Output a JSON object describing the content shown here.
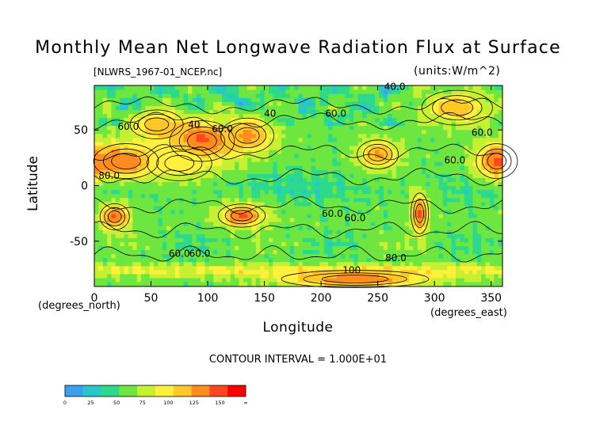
{
  "chart_data": {
    "type": "heatmap",
    "title": "Monthly Mean Net Longwave Radiation Flux at Surface",
    "subtitle_left": "[NLWRS_1967-01_NCEP.nc]",
    "subtitle_right": "(units:W/m^2)",
    "xlabel": "Longitude",
    "ylabel": "Latitude",
    "x_unit_note": "(degrees_east)",
    "y_unit_note": "(degrees_north)",
    "xlim": [
      0,
      360
    ],
    "ylim": [
      -90,
      90
    ],
    "xticks": [
      0,
      50,
      100,
      150,
      200,
      250,
      300,
      350
    ],
    "yticks": [
      -50,
      0,
      50
    ],
    "contour_interval_text": "CONTOUR INTERVAL = 1.000E+01",
    "contour_labels": [
      {
        "text": "40.0",
        "lon": 265,
        "lat": 86
      },
      {
        "text": "60.0",
        "lon": 213,
        "lat": 62
      },
      {
        "text": "60.0",
        "lon": 30,
        "lat": 50
      },
      {
        "text": "60.0",
        "lon": 113,
        "lat": 48
      },
      {
        "text": "40",
        "lon": 88,
        "lat": 52
      },
      {
        "text": "40",
        "lon": 155,
        "lat": 62
      },
      {
        "text": "60.0",
        "lon": 318,
        "lat": 20
      },
      {
        "text": "60.0",
        "lon": 342,
        "lat": 45
      },
      {
        "text": "80.0",
        "lon": 13,
        "lat": 6
      },
      {
        "text": "60.0",
        "lon": 210,
        "lat": -28
      },
      {
        "text": "60.0",
        "lon": 230,
        "lat": -32
      },
      {
        "text": "60.0",
        "lon": 93,
        "lat": -64
      },
      {
        "text": "60.0",
        "lon": 75,
        "lat": -64
      },
      {
        "text": "80.0",
        "lon": 266,
        "lat": -68
      },
      {
        "text": "100",
        "lon": 227,
        "lat": -79
      }
    ],
    "colorbar": {
      "labels": [
        "0",
        "25",
        "50",
        "75",
        "100",
        "125",
        "150",
        "∞"
      ],
      "colors": [
        "#3ca0f0",
        "#28c8c8",
        "#2dd98a",
        "#6ee640",
        "#c8f032",
        "#fff03c",
        "#ffc828",
        "#ff8c1e",
        "#ff461e",
        "#ff0000"
      ]
    },
    "features": [
      {
        "lon": 28,
        "lat": 22,
        "peak": 110,
        "rx": 22,
        "ry": 12
      },
      {
        "lon": 55,
        "lat": 55,
        "peak": 95,
        "rx": 18,
        "ry": 10
      },
      {
        "lon": 95,
        "lat": 40,
        "peak": 115,
        "rx": 22,
        "ry": 14
      },
      {
        "lon": 135,
        "lat": 45,
        "peak": 100,
        "rx": 18,
        "ry": 12
      },
      {
        "lon": 75,
        "lat": 20,
        "peak": 85,
        "rx": 22,
        "ry": 12
      },
      {
        "lon": 250,
        "lat": 28,
        "peak": 100,
        "rx": 14,
        "ry": 10
      },
      {
        "lon": 355,
        "lat": 22,
        "peak": 110,
        "rx": 14,
        "ry": 12
      },
      {
        "lon": 320,
        "lat": 70,
        "peak": 95,
        "rx": 24,
        "ry": 12
      },
      {
        "lon": 18,
        "lat": -28,
        "peak": 110,
        "rx": 10,
        "ry": 9
      },
      {
        "lon": 130,
        "lat": -27,
        "peak": 110,
        "rx": 16,
        "ry": 8
      },
      {
        "lon": 287,
        "lat": -25,
        "peak": 110,
        "rx": 6,
        "ry": 14
      },
      {
        "lon": 230,
        "lat": -84,
        "peak": 105,
        "rx": 50,
        "ry": 6
      }
    ]
  }
}
